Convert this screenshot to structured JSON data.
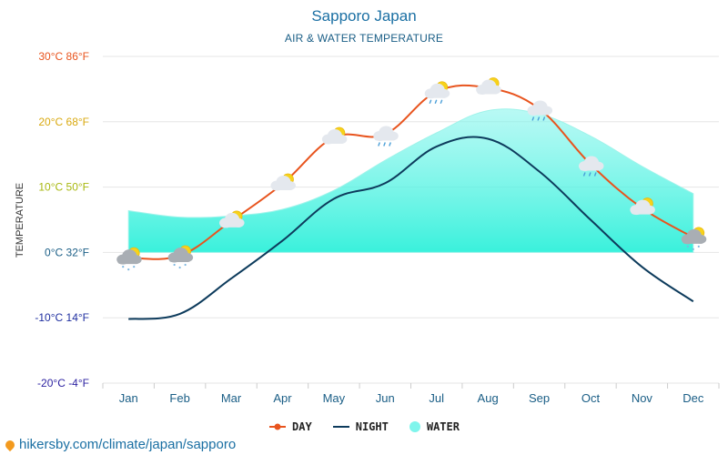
{
  "header": {
    "title": "Sapporo Japan",
    "subtitle": "AIR & WATER TEMPERATURE"
  },
  "footer": {
    "url_text": "hikersby.com/climate/japan/sapporo"
  },
  "colors": {
    "day": "#e8541e",
    "night": "#0d3b5c",
    "water_top": "#7ff5ec",
    "water_bottom": "#2ff0da",
    "grid": "#e6e6e6",
    "axis_label_blue": "#1a5e86"
  },
  "chart_data": {
    "type": "line",
    "title": "Sapporo Japan",
    "subtitle": "AIR & WATER TEMPERATURE",
    "ylabel": "TEMPERATURE",
    "categories": [
      "Jan",
      "Feb",
      "Mar",
      "Apr",
      "May",
      "Jun",
      "Jul",
      "Aug",
      "Sep",
      "Oct",
      "Nov",
      "Dec"
    ],
    "ylim": [
      -20,
      30
    ],
    "yticks": [
      {
        "value": 30,
        "label": "30°C 86°F",
        "color": "#e8541e"
      },
      {
        "value": 20,
        "label": "20°C 68°F",
        "color": "#d9a90f"
      },
      {
        "value": 10,
        "label": "10°C 50°F",
        "color": "#a8b810"
      },
      {
        "value": 0,
        "label": "0°C 32°F",
        "color": "#1a5e86"
      },
      {
        "value": -10,
        "label": "-10°C 14°F",
        "color": "#1f2fa0"
      },
      {
        "value": -20,
        "label": "-20°C -4°F",
        "color": "#2a1fa0"
      }
    ],
    "series": [
      {
        "name": "DAY",
        "values": [
          -0.8,
          -0.5,
          4.8,
          10.5,
          17.6,
          18.1,
          24.6,
          25.2,
          22.0,
          13.5,
          6.8,
          2.3
        ]
      },
      {
        "name": "NIGHT",
        "values": [
          -10.2,
          -9.4,
          -4.0,
          1.8,
          8.2,
          10.6,
          16.2,
          17.4,
          12.4,
          5.0,
          -2.2,
          -7.5
        ]
      },
      {
        "name": "WATER",
        "values": [
          6.4,
          5.4,
          5.6,
          6.6,
          9.5,
          14.1,
          18.3,
          21.7,
          21.2,
          17.8,
          13.2,
          9.0
        ]
      }
    ],
    "weather_icons": [
      "snow-cloud-sun",
      "snow-cloud-sun",
      "sun-cloud",
      "sun-cloud",
      "sun-cloud",
      "rain-cloud",
      "rain-cloud-sun",
      "cloud-sun",
      "rain-cloud",
      "rain-cloud",
      "sun-cloud",
      "snow-cloud-sun"
    ],
    "grid": true,
    "legend_position": "bottom"
  }
}
